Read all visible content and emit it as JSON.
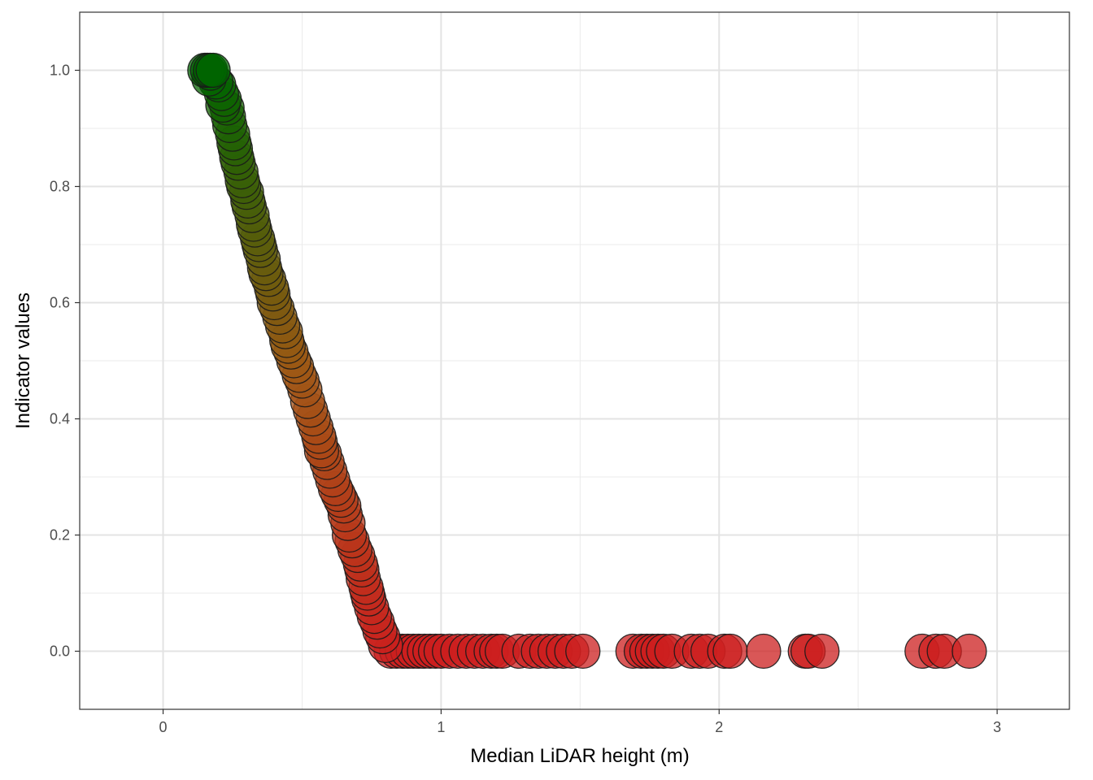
{
  "chart_data": {
    "type": "scatter",
    "title": "",
    "xlabel": "Median LiDAR height (m)",
    "ylabel": "Indicator values",
    "xlim": [
      -0.3,
      3.26
    ],
    "ylim": [
      -0.1,
      1.1
    ],
    "x_ticks": [
      0,
      1,
      2,
      3
    ],
    "x_tick_labels": [
      "0",
      "1",
      "2",
      "3"
    ],
    "y_ticks": [
      0.0,
      0.2,
      0.4,
      0.6,
      0.8,
      1.0
    ],
    "y_tick_labels": [
      "0.0",
      "0.2",
      "0.4",
      "0.6",
      "0.8",
      "1.0"
    ],
    "grid": true,
    "legend": "none",
    "color_scale": {
      "low": "#cc1f1f",
      "high": "#006400"
    },
    "point_fill_opacity": 0.75,
    "point_stroke": "#1a1a1a",
    "series": [
      {
        "points": [
          [
            0.15,
            1.0
          ],
          [
            0.16,
            1.0
          ],
          [
            0.17,
            1.0
          ],
          [
            0.18,
            1.0
          ],
          [
            0.165,
            0.985
          ],
          [
            0.17,
            0.995
          ],
          [
            0.19,
            0.98
          ],
          [
            0.2,
            0.975
          ],
          [
            0.21,
            0.96
          ],
          [
            0.22,
            0.95
          ],
          [
            0.215,
            0.94
          ],
          [
            0.23,
            0.935
          ],
          [
            0.235,
            0.92
          ],
          [
            0.24,
            0.905
          ],
          [
            0.25,
            0.89
          ],
          [
            0.255,
            0.875
          ],
          [
            0.26,
            0.865
          ],
          [
            0.265,
            0.85
          ],
          [
            0.27,
            0.84
          ],
          [
            0.28,
            0.825
          ],
          [
            0.285,
            0.81
          ],
          [
            0.29,
            0.8
          ],
          [
            0.3,
            0.79
          ],
          [
            0.305,
            0.775
          ],
          [
            0.31,
            0.765
          ],
          [
            0.32,
            0.75
          ],
          [
            0.325,
            0.735
          ],
          [
            0.33,
            0.725
          ],
          [
            0.34,
            0.71
          ],
          [
            0.345,
            0.7
          ],
          [
            0.35,
            0.69
          ],
          [
            0.36,
            0.675
          ],
          [
            0.365,
            0.66
          ],
          [
            0.37,
            0.65
          ],
          [
            0.38,
            0.64
          ],
          [
            0.39,
            0.625
          ],
          [
            0.395,
            0.615
          ],
          [
            0.4,
            0.6
          ],
          [
            0.41,
            0.59
          ],
          [
            0.42,
            0.575
          ],
          [
            0.43,
            0.56
          ],
          [
            0.44,
            0.55
          ],
          [
            0.445,
            0.535
          ],
          [
            0.45,
            0.525
          ],
          [
            0.46,
            0.515
          ],
          [
            0.47,
            0.5
          ],
          [
            0.48,
            0.49
          ],
          [
            0.49,
            0.475
          ],
          [
            0.5,
            0.465
          ],
          [
            0.51,
            0.45
          ],
          [
            0.52,
            0.43
          ],
          [
            0.53,
            0.415
          ],
          [
            0.54,
            0.4
          ],
          [
            0.55,
            0.385
          ],
          [
            0.56,
            0.37
          ],
          [
            0.565,
            0.36
          ],
          [
            0.57,
            0.345
          ],
          [
            0.58,
            0.34
          ],
          [
            0.59,
            0.325
          ],
          [
            0.6,
            0.31
          ],
          [
            0.61,
            0.295
          ],
          [
            0.62,
            0.28
          ],
          [
            0.63,
            0.27
          ],
          [
            0.64,
            0.26
          ],
          [
            0.65,
            0.25
          ],
          [
            0.655,
            0.235
          ],
          [
            0.665,
            0.22
          ],
          [
            0.67,
            0.2
          ],
          [
            0.68,
            0.19
          ],
          [
            0.69,
            0.175
          ],
          [
            0.7,
            0.165
          ],
          [
            0.71,
            0.15
          ],
          [
            0.715,
            0.14
          ],
          [
            0.72,
            0.125
          ],
          [
            0.73,
            0.11
          ],
          [
            0.735,
            0.1
          ],
          [
            0.74,
            0.09
          ],
          [
            0.75,
            0.075
          ],
          [
            0.76,
            0.06
          ],
          [
            0.77,
            0.05
          ],
          [
            0.78,
            0.035
          ],
          [
            0.79,
            0.025
          ],
          [
            0.8,
            0.01
          ],
          [
            0.82,
            0.0
          ],
          [
            0.84,
            0.0
          ],
          [
            0.86,
            0.0
          ],
          [
            0.88,
            0.0
          ],
          [
            0.9,
            0.0
          ],
          [
            0.92,
            0.0
          ],
          [
            0.94,
            0.0
          ],
          [
            0.96,
            0.0
          ],
          [
            0.98,
            0.0
          ],
          [
            1.0,
            0.0
          ],
          [
            1.03,
            0.0
          ],
          [
            1.06,
            0.0
          ],
          [
            1.09,
            0.0
          ],
          [
            1.12,
            0.0
          ],
          [
            1.15,
            0.0
          ],
          [
            1.18,
            0.0
          ],
          [
            1.2,
            0.0
          ],
          [
            1.22,
            0.0
          ],
          [
            1.28,
            0.0
          ],
          [
            1.32,
            0.0
          ],
          [
            1.35,
            0.0
          ],
          [
            1.38,
            0.0
          ],
          [
            1.41,
            0.0
          ],
          [
            1.44,
            0.0
          ],
          [
            1.47,
            0.0
          ],
          [
            1.51,
            0.0
          ],
          [
            1.69,
            0.0
          ],
          [
            1.72,
            0.0
          ],
          [
            1.74,
            0.0
          ],
          [
            1.76,
            0.0
          ],
          [
            1.78,
            0.0
          ],
          [
            1.8,
            0.0
          ],
          [
            1.83,
            0.0
          ],
          [
            1.9,
            0.0
          ],
          [
            1.93,
            0.0
          ],
          [
            1.96,
            0.0
          ],
          [
            2.02,
            0.0
          ],
          [
            2.04,
            0.0
          ],
          [
            2.16,
            0.0
          ],
          [
            2.31,
            0.0
          ],
          [
            2.32,
            0.0
          ],
          [
            2.37,
            0.0
          ],
          [
            2.73,
            0.0
          ],
          [
            2.78,
            0.0
          ],
          [
            2.81,
            0.0
          ],
          [
            2.9,
            0.0
          ]
        ]
      }
    ]
  }
}
